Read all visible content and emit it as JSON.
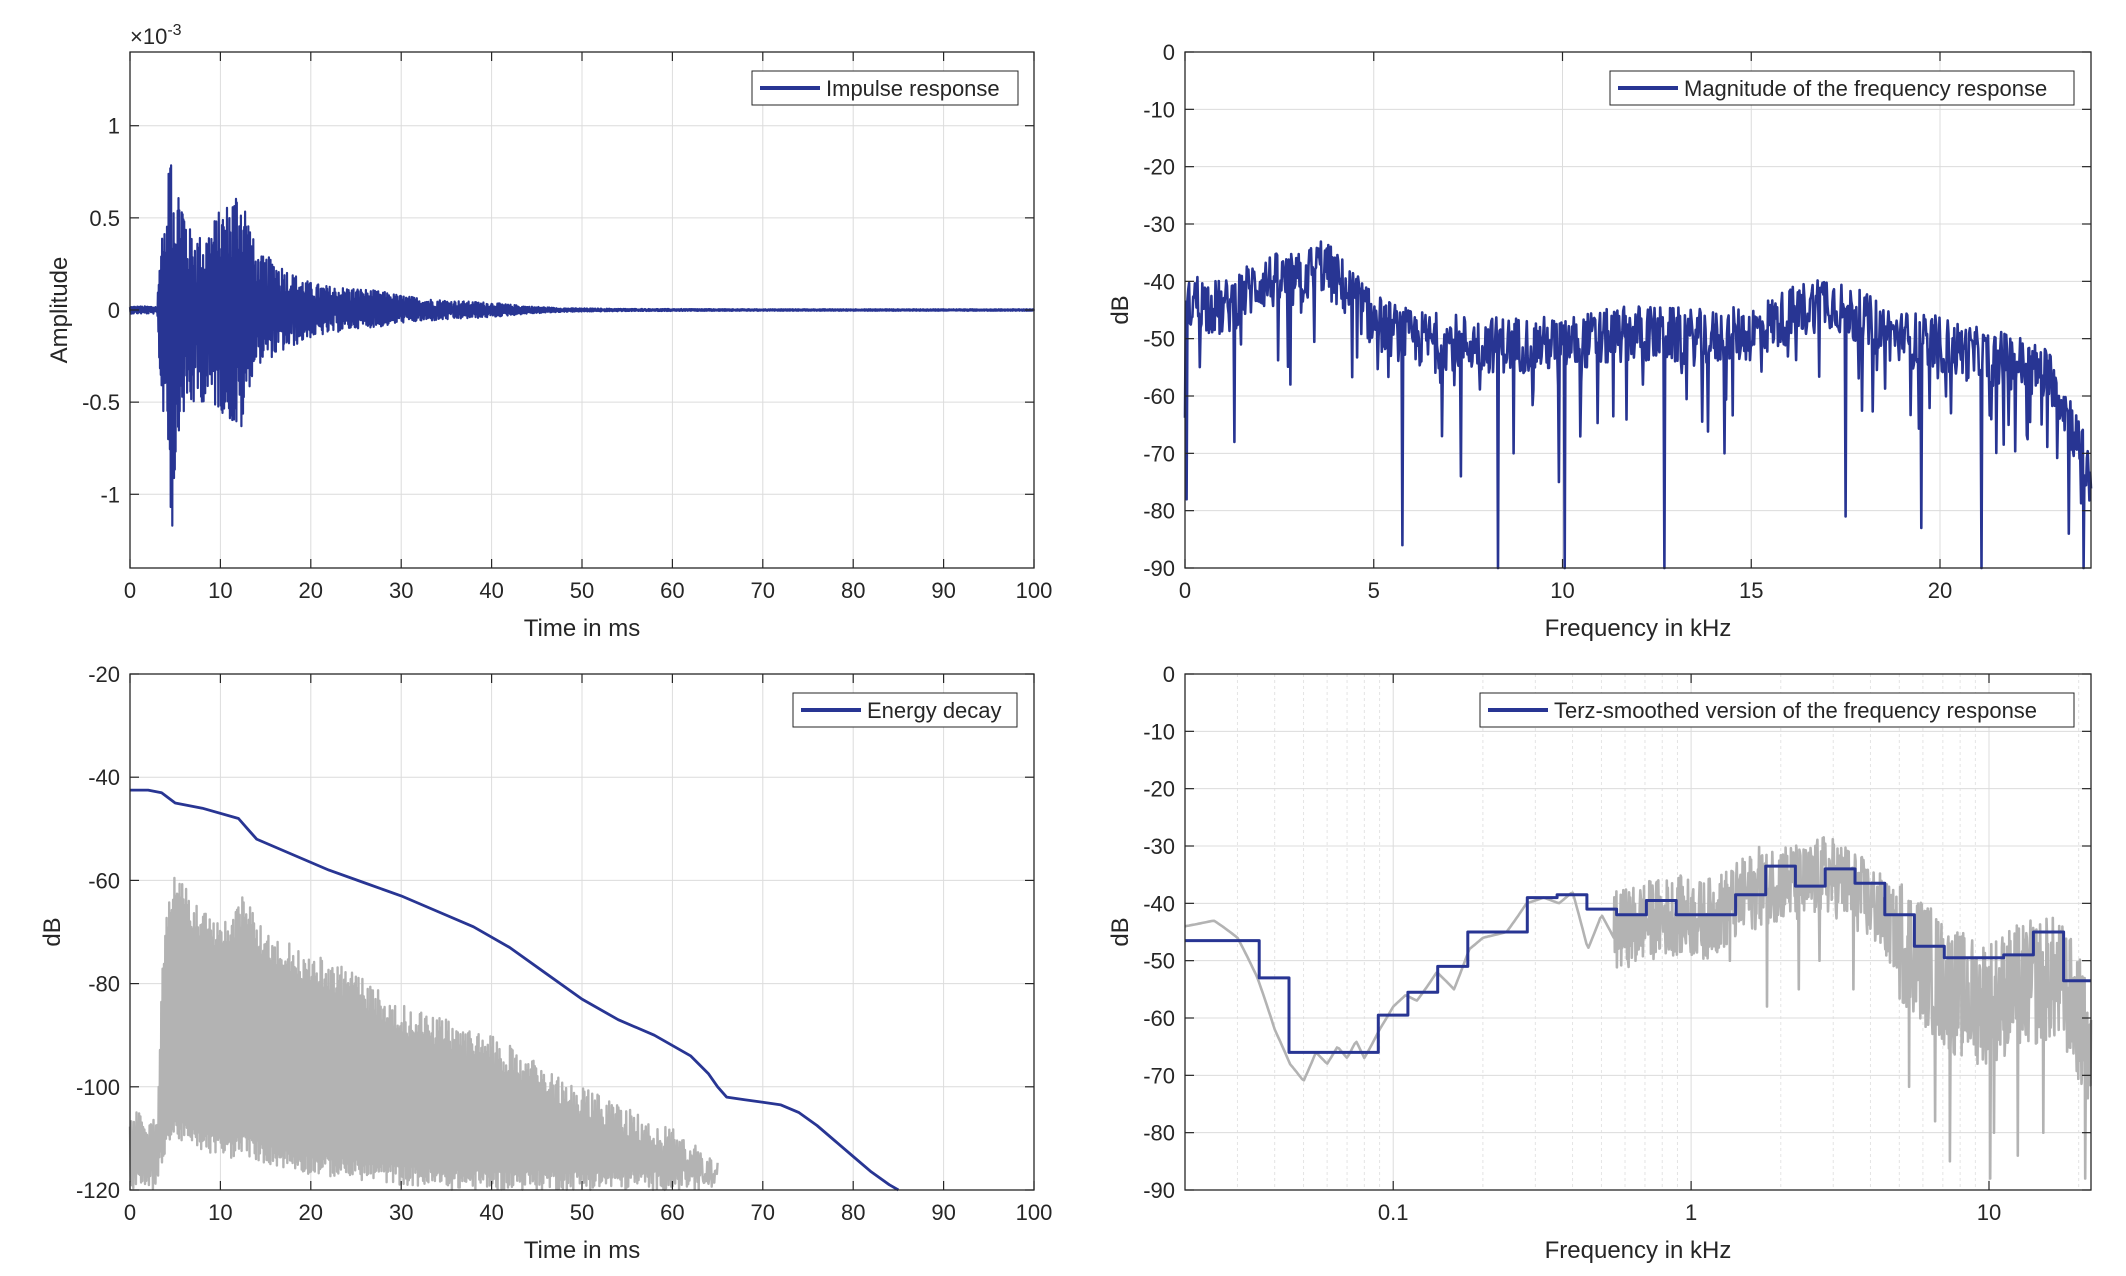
{
  "colors": {
    "series": "#283593",
    "gray": "#b3b3b3",
    "axis": "#262626",
    "grid": "#dcdcdc",
    "minor_grid": "#e4e4e4"
  },
  "chart_data": [
    {
      "id": "impulse",
      "type": "line",
      "xlabel": "Time in ms",
      "ylabel": "Amplitude",
      "exponent": "×10-3",
      "exponent_base": "×10",
      "exponent_power": "-3",
      "xlim": [
        0,
        100
      ],
      "ylim": [
        -1.4,
        1.4
      ],
      "xticks": [
        0,
        10,
        20,
        30,
        40,
        50,
        60,
        70,
        80,
        90,
        100
      ],
      "xticklabels": [
        "0",
        "10",
        "20",
        "30",
        "40",
        "50",
        "60",
        "70",
        "80",
        "90",
        "100"
      ],
      "yticks": [
        -1,
        -0.5,
        0,
        0.5,
        1
      ],
      "yticklabels": [
        "-1",
        "-0.5",
        "0",
        "0.5",
        "1"
      ],
      "grid": true,
      "legend": {
        "placement": "top-right",
        "entries": [
          "Impulse response"
        ]
      },
      "series": [
        {
          "name": "Impulse response",
          "color": "#283593",
          "envelope": {
            "x": [
              0,
              3.0,
              3.5,
              4.0,
              4.6,
              5.0,
              5.5,
              6.5,
              8,
              10,
              11,
              12,
              12.5,
              13,
              14,
              16,
              18,
              20,
              22,
              25,
              28,
              30,
              33,
              36,
              40,
              44,
              48,
              55,
              70,
              100
            ],
            "upper": [
              0.02,
              0.02,
              0.5,
              0.4,
              1.15,
              0.55,
              0.75,
              0.45,
              0.4,
              0.55,
              0.6,
              0.7,
              0.65,
              0.55,
              0.3,
              0.28,
              0.2,
              0.15,
              0.13,
              0.12,
              0.1,
              0.08,
              0.06,
              0.05,
              0.04,
              0.02,
              0.01,
              0.006,
              0.004,
              0.004
            ],
            "lower": [
              -0.02,
              -0.02,
              -0.6,
              -0.5,
              -1.3,
              -0.9,
              -0.6,
              -0.55,
              -0.5,
              -0.55,
              -0.6,
              -0.7,
              -0.65,
              -0.45,
              -0.3,
              -0.25,
              -0.2,
              -0.15,
              -0.13,
              -0.1,
              -0.09,
              -0.07,
              -0.06,
              -0.05,
              -0.04,
              -0.02,
              -0.01,
              -0.006,
              -0.004,
              -0.004
            ]
          }
        }
      ]
    },
    {
      "id": "magnitude",
      "type": "line",
      "xlabel": "Frequency in kHz",
      "ylabel": "dB",
      "xlim": [
        0,
        24
      ],
      "ylim": [
        -90,
        0
      ],
      "xticks": [
        0,
        5,
        10,
        15,
        20
      ],
      "xticklabels": [
        "0",
        "5",
        "10",
        "15",
        "20"
      ],
      "yticks": [
        0,
        -10,
        -20,
        -30,
        -40,
        -50,
        -60,
        -70,
        -80,
        -90
      ],
      "yticklabels": [
        "0",
        "-10",
        "-20",
        "-30",
        "-40",
        "-50",
        "-60",
        "-70",
        "-80",
        "-90"
      ],
      "grid": true,
      "legend": {
        "placement": "top-right",
        "entries": [
          "Magnitude of the frequency response"
        ]
      },
      "series": [
        {
          "name": "Magnitude of the frequency response",
          "color": "#283593",
          "trend": {
            "x": [
              0,
              0.2,
              1,
              2,
              3,
              3.6,
              4.5,
              5,
              6,
              8,
              10,
              12,
              14,
              15,
              16,
              17,
              18,
              19,
              20,
              21,
              22,
              23,
              23.5,
              24
            ],
            "y": [
              -47,
              -43,
              -45,
              -40,
              -40,
              -37,
              -43,
              -47,
              -50,
              -51,
              -51,
              -49,
              -50,
              -49,
              -46,
              -43,
              -47,
              -50,
              -51,
              -53,
              -54,
              -57,
              -65,
              -75
            ]
          },
          "spread_db": 5,
          "dips": [
            {
              "x": 0.05,
              "y": -78
            },
            {
              "x": 1.3,
              "y": -68
            },
            {
              "x": 2.8,
              "y": -58
            },
            {
              "x": 5.75,
              "y": -86
            },
            {
              "x": 6.8,
              "y": -67
            },
            {
              "x": 7.3,
              "y": -74
            },
            {
              "x": 8.3,
              "y": -90
            },
            {
              "x": 8.7,
              "y": -70
            },
            {
              "x": 9.9,
              "y": -75
            },
            {
              "x": 10.05,
              "y": -90
            },
            {
              "x": 12.7,
              "y": -90
            },
            {
              "x": 14.3,
              "y": -70
            },
            {
              "x": 17.5,
              "y": -81
            },
            {
              "x": 19.5,
              "y": -83
            },
            {
              "x": 20.3,
              "y": -63
            },
            {
              "x": 21.1,
              "y": -90
            },
            {
              "x": 23.4,
              "y": -84
            },
            {
              "x": 23.8,
              "y": -90
            }
          ]
        }
      ]
    },
    {
      "id": "decay",
      "type": "line",
      "xlabel": "Time in ms",
      "ylabel": "dB",
      "xlim": [
        0,
        100
      ],
      "ylim": [
        -120,
        -20
      ],
      "xticks": [
        0,
        10,
        20,
        30,
        40,
        50,
        60,
        70,
        80,
        90,
        100
      ],
      "xticklabels": [
        "0",
        "10",
        "20",
        "30",
        "40",
        "50",
        "60",
        "70",
        "80",
        "90",
        "100"
      ],
      "yticks": [
        -20,
        -40,
        -60,
        -80,
        -100,
        -120
      ],
      "yticklabels": [
        "-20",
        "-40",
        "-60",
        "-80",
        "-100",
        "-120"
      ],
      "grid": true,
      "legend": {
        "placement": "top-right",
        "entries": [
          "Energy decay"
        ]
      },
      "series": [
        {
          "name": "Energy decay",
          "color": "#283593",
          "x": [
            0,
            2,
            3.5,
            5,
            8,
            12,
            13,
            14,
            18,
            22,
            26,
            30,
            34,
            38,
            42,
            46,
            50,
            54,
            58,
            62,
            64,
            65,
            66,
            68,
            70,
            72,
            74,
            76,
            78,
            80,
            82,
            84,
            85
          ],
          "y": [
            -42.5,
            -42.5,
            -43,
            -45,
            -46,
            -48,
            -50,
            -52,
            -55,
            -58,
            -60.5,
            -63,
            -66,
            -69,
            -73,
            -78,
            -83,
            -87,
            -90,
            -94,
            -97.5,
            -100,
            -102,
            -102.5,
            -103,
            -103.5,
            -105,
            -107.5,
            -110.5,
            -113.5,
            -116.5,
            -119,
            -120
          ]
        },
        {
          "name": "",
          "color": "#b3b3b3",
          "envelope": {
            "x": [
              0,
              3,
              3.5,
              4,
              5,
              7,
              9,
              11,
              12.5,
              15,
              20,
              25,
              30,
              35,
              40,
              45,
              50,
              55,
              60,
              63,
              65
            ],
            "upper": [
              -105,
              -104,
              -80,
              -65,
              -58,
              -64,
              -67,
              -68,
              -63,
              -70,
              -74,
              -78,
              -84,
              -87,
              -90,
              -95,
              -100,
              -104,
              -108,
              -112,
              -114
            ],
            "lower": [
              -120,
              -120,
              -115,
              -112,
              -110,
              -112,
              -113,
              -114,
              -113,
              -115,
              -117,
              -118,
              -119,
              -120,
              -120,
              -120,
              -120,
              -120,
              -120,
              -120,
              -120
            ]
          }
        }
      ]
    },
    {
      "id": "terz",
      "type": "line",
      "xlabel": "Frequency in kHz",
      "ylabel": "dB",
      "xscale": "log",
      "xlim": [
        0.02,
        22
      ],
      "ylim": [
        -90,
        0
      ],
      "xticks": [
        0.1,
        1,
        10
      ],
      "xticklabels": [
        "0.1",
        "1",
        "10"
      ],
      "yticks": [
        0,
        -10,
        -20,
        -30,
        -40,
        -50,
        -60,
        -70,
        -80,
        -90
      ],
      "yticklabels": [
        "0",
        "-10",
        "-20",
        "-30",
        "-40",
        "-50",
        "-60",
        "-70",
        "-80",
        "-90"
      ],
      "grid": true,
      "minor_grid": true,
      "legend": {
        "placement": "top-right",
        "entries": [
          "Terz-smoothed version of the frequency response"
        ]
      },
      "series": [
        {
          "name": "Terz-smoothed version of the frequency response",
          "color": "#283593",
          "steps": [
            {
              "from": 0.02,
              "to": 0.0355,
              "y": -46.5
            },
            {
              "from": 0.0355,
              "to": 0.0447,
              "y": -53
            },
            {
              "from": 0.0447,
              "to": 0.0891,
              "y": -66
            },
            {
              "from": 0.0891,
              "to": 0.112,
              "y": -59.5
            },
            {
              "from": 0.112,
              "to": 0.141,
              "y": -55.5
            },
            {
              "from": 0.141,
              "to": 0.178,
              "y": -51
            },
            {
              "from": 0.178,
              "to": 0.282,
              "y": -45
            },
            {
              "from": 0.282,
              "to": 0.355,
              "y": -39
            },
            {
              "from": 0.355,
              "to": 0.447,
              "y": -38.5
            },
            {
              "from": 0.447,
              "to": 0.562,
              "y": -41
            },
            {
              "from": 0.562,
              "to": 0.708,
              "y": -42
            },
            {
              "from": 0.708,
              "to": 0.891,
              "y": -39.5
            },
            {
              "from": 0.891,
              "to": 1.41,
              "y": -42
            },
            {
              "from": 1.41,
              "to": 1.78,
              "y": -38.5
            },
            {
              "from": 1.78,
              "to": 2.24,
              "y": -33.5
            },
            {
              "from": 2.24,
              "to": 2.82,
              "y": -37
            },
            {
              "from": 2.82,
              "to": 3.55,
              "y": -34
            },
            {
              "from": 3.55,
              "to": 4.47,
              "y": -36.5
            },
            {
              "from": 4.47,
              "to": 5.62,
              "y": -42
            },
            {
              "from": 5.62,
              "to": 7.08,
              "y": -47.5
            },
            {
              "from": 7.08,
              "to": 8.91,
              "y": -49.5
            },
            {
              "from": 8.91,
              "to": 11.2,
              "y": -49.5
            },
            {
              "from": 11.2,
              "to": 14.1,
              "y": -49
            },
            {
              "from": 14.1,
              "to": 17.8,
              "y": -45
            },
            {
              "from": 17.8,
              "to": 22,
              "y": -53.5
            }
          ]
        },
        {
          "name": "",
          "color": "#b3b3b3",
          "smooth": {
            "x": [
              0.02,
              0.025,
              0.03,
              0.035,
              0.04,
              0.045,
              0.05,
              0.055,
              0.06,
              0.065,
              0.07,
              0.075,
              0.08,
              0.09,
              0.1,
              0.11,
              0.12,
              0.14,
              0.16,
              0.18,
              0.2,
              0.24,
              0.28,
              0.32,
              0.36,
              0.4,
              0.45,
              0.5,
              0.55
            ],
            "y": [
              -44,
              -43,
              -46,
              -53,
              -62,
              -68,
              -71,
              -66,
              -68,
              -65,
              -67,
              -64,
              -67,
              -62,
              -58,
              -56,
              -57,
              -52,
              -55,
              -48,
              -46,
              -45,
              -40,
              -39,
              -40,
              -38,
              -48,
              -42,
              -46
            ]
          },
          "noisy": {
            "x": [
              0.55,
              0.7,
              0.9,
              1.1,
              1.4,
              1.7,
              2.0,
              2.4,
              2.8,
              3.2,
              3.6,
              4.2,
              5.0,
              6.0,
              7.0,
              8.0,
              9.0,
              10.0,
              11.0,
              12.0,
              14.0,
              16.0,
              18.0,
              20.0,
              22.0
            ],
            "y": [
              -45,
              -43,
              -42,
              -43,
              -40,
              -37,
              -36,
              -37,
              -35,
              -36,
              -38,
              -41,
              -46,
              -50,
              -54,
              -56,
              -57,
              -57,
              -56,
              -55,
              -54,
              -53,
              -55,
              -60,
              -68
            ]
          },
          "spread_db": 7,
          "dips": [
            {
              "x": 0.65,
              "y": -50
            },
            {
              "x": 1.35,
              "y": -50
            },
            {
              "x": 1.8,
              "y": -58
            },
            {
              "x": 2.3,
              "y": -55
            },
            {
              "x": 2.7,
              "y": -50
            },
            {
              "x": 3.5,
              "y": -55
            },
            {
              "x": 5.4,
              "y": -72
            },
            {
              "x": 6.6,
              "y": -78
            },
            {
              "x": 7.4,
              "y": -85
            },
            {
              "x": 10.1,
              "y": -88
            },
            {
              "x": 10.4,
              "y": -80
            },
            {
              "x": 12.5,
              "y": -84
            },
            {
              "x": 15.2,
              "y": -80
            },
            {
              "x": 21.0,
              "y": -88
            }
          ]
        }
      ]
    }
  ]
}
